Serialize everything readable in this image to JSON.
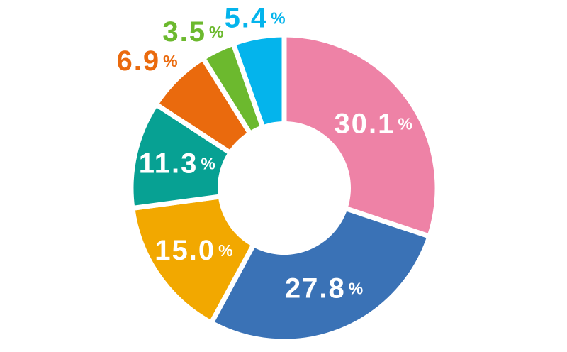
{
  "page": {
    "background": "#ffffff"
  },
  "chart_data": {
    "type": "pie",
    "variant": "donut",
    "title": "",
    "xlabel": "",
    "ylabel": "",
    "unit": "%",
    "total": 100.0,
    "start_angle_deg": 0,
    "direction": "clockwise",
    "inner_radius_ratio": 0.44,
    "separator_color": "#ffffff",
    "legend": "none",
    "grid": "off",
    "segments": [
      {
        "value": 30.1,
        "label": "30.1",
        "unit": "%",
        "color": "#ee82a6",
        "label_color": "#ffffff",
        "label_placement": "inside"
      },
      {
        "value": 27.8,
        "label": "27.8",
        "unit": "%",
        "color": "#3a72b6",
        "label_color": "#ffffff",
        "label_placement": "inside"
      },
      {
        "value": 15.0,
        "label": "15.0",
        "unit": "%",
        "color": "#f2a800",
        "label_color": "#ffffff",
        "label_placement": "inside"
      },
      {
        "value": 11.3,
        "label": "11.3",
        "unit": "%",
        "color": "#07a193",
        "label_color": "#ffffff",
        "label_placement": "inside"
      },
      {
        "value": 6.9,
        "label": "6.9",
        "unit": "%",
        "color": "#ea6a0d",
        "label_color": "#ea6a0d",
        "label_placement": "outside"
      },
      {
        "value": 3.5,
        "label": "3.5",
        "unit": "%",
        "color": "#6cb92e",
        "label_color": "#6cb92e",
        "label_placement": "outside"
      },
      {
        "value": 5.4,
        "label": "5.4",
        "unit": "%",
        "color": "#04b4ec",
        "label_color": "#04b4ec",
        "label_placement": "outside"
      }
    ]
  }
}
